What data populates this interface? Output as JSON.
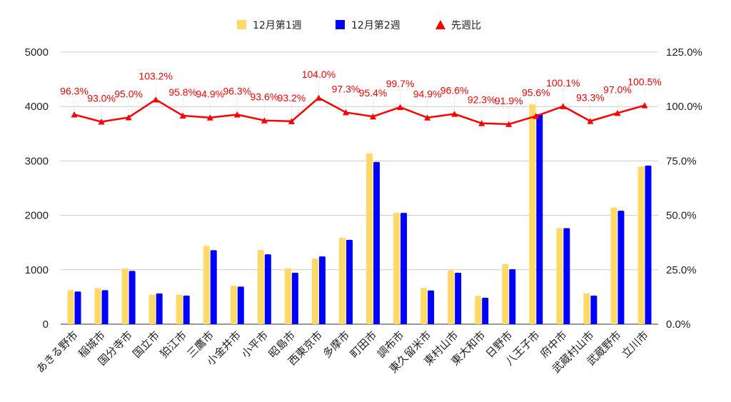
{
  "chart_data": {
    "type": "bar",
    "categories": [
      "あきる野市",
      "稲城市",
      "国分寺市",
      "国立市",
      "狛江市",
      "三鷹市",
      "小金井市",
      "小平市",
      "昭島市",
      "西東京市",
      "多摩市",
      "町田市",
      "調布市",
      "東久留米市",
      "東村山市",
      "東大和市",
      "日野市",
      "八王子市",
      "府中市",
      "武蔵村山市",
      "武蔵野市",
      "立川市"
    ],
    "series": [
      {
        "name": "12月第1週",
        "axis": "left",
        "kind": "bar",
        "color": "#FFD966",
        "values": [
          625,
          665,
          1025,
          545,
          545,
          1440,
          705,
          1365,
          1025,
          1205,
          1590,
          3140,
          2045,
          665,
          990,
          520,
          1105,
          4040,
          1765,
          565,
          2145,
          2895
        ]
      },
      {
        "name": "12月第2週",
        "axis": "left",
        "kind": "bar",
        "color": "#0000FF",
        "values": [
          600,
          625,
          980,
          565,
          525,
          1360,
          690,
          1285,
          945,
          1245,
          1550,
          2980,
          2045,
          620,
          945,
          485,
          1010,
          3860,
          1765,
          525,
          2085,
          2915
        ]
      },
      {
        "name": "先週比",
        "axis": "right",
        "kind": "line",
        "color": "#FF0000",
        "values": [
          96.3,
          93.0,
          95.0,
          103.2,
          95.8,
          94.9,
          96.3,
          93.6,
          93.2,
          104.0,
          97.3,
          95.4,
          99.7,
          94.9,
          96.6,
          92.3,
          91.9,
          95.6,
          100.1,
          93.3,
          97.0,
          100.5
        ],
        "labels": [
          "96.3%",
          "93.0%",
          "95.0%",
          "103.2%",
          "95.8%",
          "94.9%",
          "96.3%",
          "93.6%",
          "93.2%",
          "104.0%",
          "97.3%",
          "95.4%",
          "99.7%",
          "94.9%",
          "96.6%",
          "92.3%",
          "91.9%",
          "95.6%",
          "100.1%",
          "93.3%",
          "97.0%",
          "100.5%"
        ]
      }
    ],
    "y_left": {
      "min": 0,
      "max": 5000,
      "ticks": [
        "0",
        "1000",
        "2000",
        "3000",
        "4000",
        "5000"
      ]
    },
    "y_right": {
      "min": 0,
      "max": 125,
      "ticks": [
        "0.0%",
        "25.0%",
        "50.0%",
        "75.0%",
        "100.0%",
        "125.0%"
      ]
    },
    "grid": true,
    "legend_position": "top-center"
  }
}
